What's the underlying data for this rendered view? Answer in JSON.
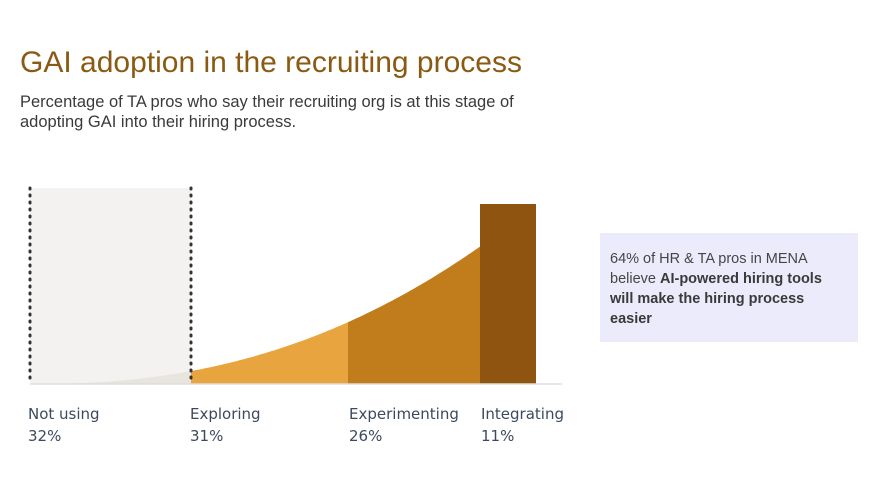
{
  "title": "GAI adoption in the recruiting process",
  "subtitle": "Percentage of TA pros who say their recruiting org is at this stage of adopting GAI into their hiring process.",
  "callout": {
    "intro": "64% of HR & TA pros in MENA believe ",
    "emphasis": "AI-powered hiring tools will make the hiring process easier"
  },
  "colors": {
    "not_using": "#e8e4de",
    "exploring": "#e8a53f",
    "experimenting": "#c17d1c",
    "integrating": "#8f5510",
    "shaded_region": "#f3f2f0",
    "callout_bg": "#ecebfb"
  },
  "chart_data": {
    "type": "area",
    "title": "GAI adoption in the recruiting process",
    "categories": [
      "Not using",
      "Exploring",
      "Experimenting",
      "Integrating"
    ],
    "value_labels": [
      "32%",
      "31%",
      "26%",
      "11%"
    ],
    "values": [
      32,
      31,
      26,
      11
    ],
    "unit": "%",
    "grid": false,
    "legend": "none"
  }
}
